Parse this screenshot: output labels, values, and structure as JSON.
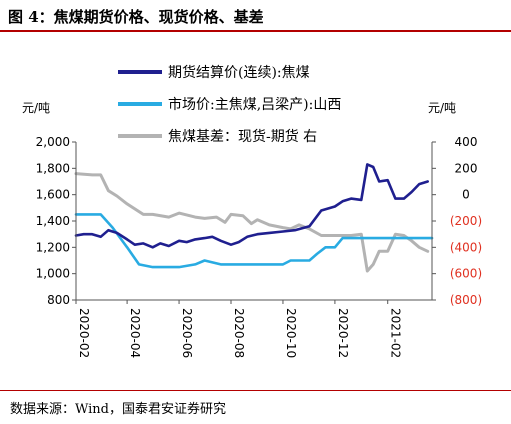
{
  "header": {
    "title": "图 4：焦煤期货价格、现货价格、基差"
  },
  "footer": {
    "source": "数据来源：Wind，国泰君安证券研究"
  },
  "chart_data": {
    "type": "line",
    "title": "",
    "left_axis": {
      "label": "元/吨",
      "ticks": [
        800,
        1000,
        1200,
        1400,
        1600,
        1800,
        2000
      ],
      "tick_labels": [
        "800",
        "1,000",
        "1,200",
        "1,400",
        "1,600",
        "1,800",
        "2,000"
      ],
      "range": [
        800,
        2000
      ]
    },
    "right_axis": {
      "label": "元/吨",
      "ticks": [
        -800,
        -600,
        -400,
        -200,
        0,
        200,
        400
      ],
      "tick_labels": [
        "(800)",
        "(600)",
        "(400)",
        "(200)",
        "0",
        "200",
        "400"
      ],
      "range": [
        -800,
        400
      ],
      "negative_color": "#e03020"
    },
    "x_axis": {
      "range": [
        "2020-02-01",
        "2021-03-25"
      ],
      "tick_labels": [
        "2020-02",
        "2020-04",
        "2020-06",
        "2020-08",
        "2020-10",
        "2020-12",
        "2021-02"
      ],
      "tick_dates": [
        "2020-02-01",
        "2020-04-01",
        "2020-06-01",
        "2020-08-01",
        "2020-10-01",
        "2020-12-01",
        "2021-02-01"
      ]
    },
    "legend": {
      "position": "top"
    },
    "series": [
      {
        "name": "期货结算价(连续):焦煤",
        "axis": "left",
        "color": "#1f1f8f",
        "points": [
          [
            "2020-02-01",
            1290
          ],
          [
            "2020-02-10",
            1300
          ],
          [
            "2020-02-20",
            1300
          ],
          [
            "2020-03-01",
            1280
          ],
          [
            "2020-03-10",
            1330
          ],
          [
            "2020-03-20",
            1310
          ],
          [
            "2020-04-01",
            1260
          ],
          [
            "2020-04-10",
            1220
          ],
          [
            "2020-04-20",
            1230
          ],
          [
            "2020-05-01",
            1200
          ],
          [
            "2020-05-10",
            1230
          ],
          [
            "2020-05-20",
            1210
          ],
          [
            "2020-06-01",
            1250
          ],
          [
            "2020-06-10",
            1240
          ],
          [
            "2020-06-20",
            1260
          ],
          [
            "2020-07-01",
            1270
          ],
          [
            "2020-07-10",
            1280
          ],
          [
            "2020-07-20",
            1250
          ],
          [
            "2020-08-01",
            1220
          ],
          [
            "2020-08-10",
            1240
          ],
          [
            "2020-08-20",
            1280
          ],
          [
            "2020-09-01",
            1300
          ],
          [
            "2020-09-15",
            1310
          ],
          [
            "2020-10-01",
            1320
          ],
          [
            "2020-10-15",
            1330
          ],
          [
            "2020-11-01",
            1360
          ],
          [
            "2020-11-15",
            1480
          ],
          [
            "2020-12-01",
            1510
          ],
          [
            "2020-12-10",
            1550
          ],
          [
            "2020-12-20",
            1570
          ],
          [
            "2021-01-01",
            1560
          ],
          [
            "2021-01-08",
            1830
          ],
          [
            "2021-01-15",
            1810
          ],
          [
            "2021-01-22",
            1700
          ],
          [
            "2021-02-01",
            1710
          ],
          [
            "2021-02-10",
            1570
          ],
          [
            "2021-02-20",
            1570
          ],
          [
            "2021-03-01",
            1620
          ],
          [
            "2021-03-10",
            1680
          ],
          [
            "2021-03-20",
            1700
          ]
        ]
      },
      {
        "name": "市场价:主焦煤,吕梁产):山西",
        "axis": "left",
        "color": "#29abe2",
        "points": [
          [
            "2020-02-01",
            1450
          ],
          [
            "2020-03-01",
            1450
          ],
          [
            "2020-03-15",
            1350
          ],
          [
            "2020-04-01",
            1200
          ],
          [
            "2020-04-15",
            1070
          ],
          [
            "2020-05-01",
            1050
          ],
          [
            "2020-06-01",
            1050
          ],
          [
            "2020-06-20",
            1070
          ],
          [
            "2020-07-01",
            1100
          ],
          [
            "2020-07-20",
            1070
          ],
          [
            "2020-09-01",
            1070
          ],
          [
            "2020-10-01",
            1070
          ],
          [
            "2020-10-10",
            1100
          ],
          [
            "2020-11-01",
            1100
          ],
          [
            "2020-11-10",
            1150
          ],
          [
            "2020-11-20",
            1200
          ],
          [
            "2020-12-01",
            1200
          ],
          [
            "2020-12-10",
            1270
          ],
          [
            "2020-12-20",
            1270
          ],
          [
            "2021-03-25",
            1270
          ]
        ]
      },
      {
        "name": "焦煤基差：现货-期货 右",
        "axis": "right",
        "color": "#b3b3b3",
        "points": [
          [
            "2020-02-01",
            160
          ],
          [
            "2020-02-20",
            150
          ],
          [
            "2020-03-01",
            150
          ],
          [
            "2020-03-10",
            30
          ],
          [
            "2020-03-20",
            -10
          ],
          [
            "2020-04-01",
            -70
          ],
          [
            "2020-04-20",
            -150
          ],
          [
            "2020-05-01",
            -150
          ],
          [
            "2020-05-20",
            -170
          ],
          [
            "2020-06-01",
            -140
          ],
          [
            "2020-06-20",
            -170
          ],
          [
            "2020-07-01",
            -180
          ],
          [
            "2020-07-15",
            -170
          ],
          [
            "2020-07-25",
            -210
          ],
          [
            "2020-08-01",
            -150
          ],
          [
            "2020-08-15",
            -160
          ],
          [
            "2020-08-25",
            -220
          ],
          [
            "2020-09-01",
            -190
          ],
          [
            "2020-09-15",
            -230
          ],
          [
            "2020-10-01",
            -250
          ],
          [
            "2020-10-10",
            -260
          ],
          [
            "2020-10-20",
            -230
          ],
          [
            "2020-11-01",
            -260
          ],
          [
            "2020-11-15",
            -310
          ],
          [
            "2020-12-01",
            -310
          ],
          [
            "2020-12-20",
            -310
          ],
          [
            "2021-01-01",
            -300
          ],
          [
            "2021-01-08",
            -580
          ],
          [
            "2021-01-15",
            -530
          ],
          [
            "2021-01-22",
            -430
          ],
          [
            "2021-02-01",
            -430
          ],
          [
            "2021-02-10",
            -300
          ],
          [
            "2021-02-20",
            -310
          ],
          [
            "2021-03-01",
            -350
          ],
          [
            "2021-03-10",
            -400
          ],
          [
            "2021-03-20",
            -430
          ]
        ]
      }
    ]
  }
}
